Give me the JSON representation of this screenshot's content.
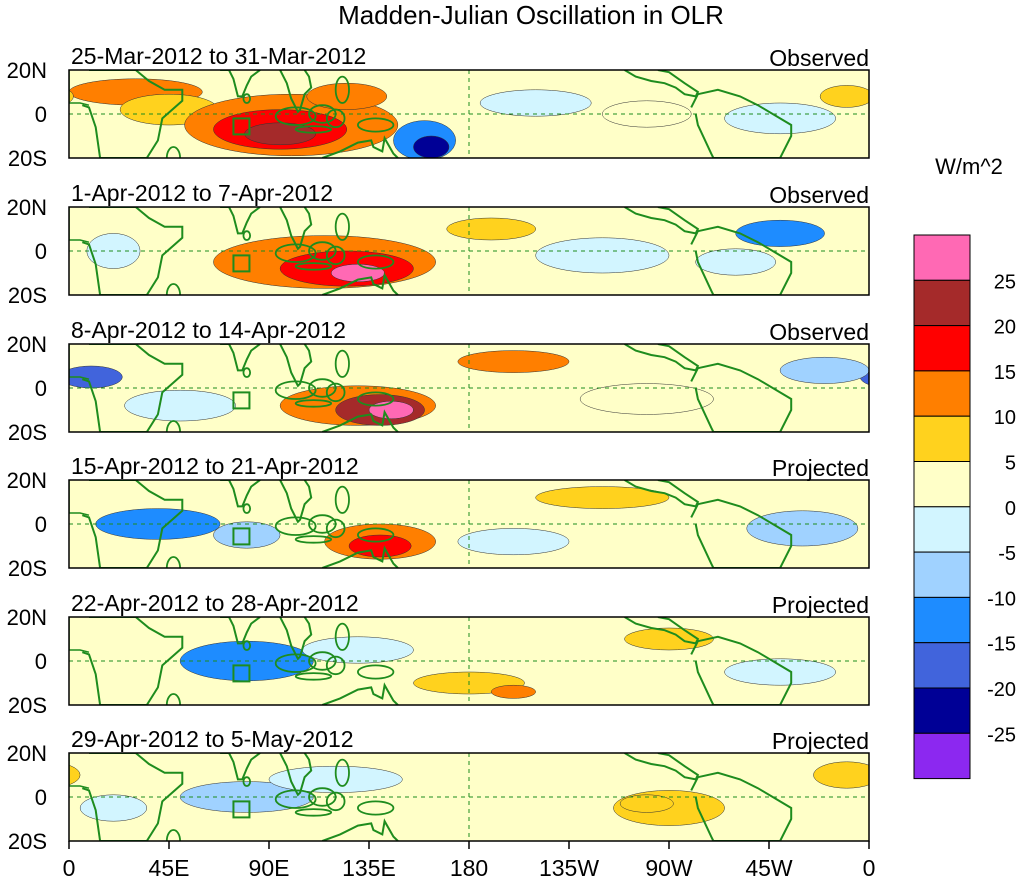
{
  "chart_data": {
    "type": "heatmap",
    "title": "Madden-Julian Oscillation in OLR",
    "units": "W/m^2",
    "lon_ticks": [
      "0",
      "45E",
      "90E",
      "135E",
      "180",
      "135W",
      "90W",
      "45W",
      "0"
    ],
    "lat_ticks": [
      "20N",
      "0",
      "20S"
    ],
    "colorbar": {
      "labels": [
        "25",
        "20",
        "15",
        "10",
        "5",
        "0",
        "-5",
        "-10",
        "-15",
        "-20",
        "-25"
      ],
      "colors": [
        "#ff69b4",
        "#a52a2a",
        "#ff0000",
        "#ff7f00",
        "#ffd21e",
        "#ffffc8",
        "#d2f5ff",
        "#a0d2ff",
        "#1e8cff",
        "#4164dc",
        "#000096",
        "#8c28f0"
      ]
    },
    "land_color": "#1e8c1e",
    "panels": [
      {
        "date_range": "25-Mar-2012 to 31-Mar-2012",
        "status": "Observed",
        "anomalies": [
          {
            "lon": 30,
            "lat": 10,
            "rx": 30,
            "ry": 6,
            "level": 3
          },
          {
            "lon": 45,
            "lat": 2,
            "rx": 22,
            "ry": 7,
            "level": 4
          },
          {
            "lon": 100,
            "lat": -5,
            "rx": 48,
            "ry": 14,
            "level": 3
          },
          {
            "lon": 95,
            "lat": -7,
            "rx": 30,
            "ry": 9,
            "level": 2
          },
          {
            "lon": 95,
            "lat": -9,
            "rx": 16,
            "ry": 5,
            "level": 1
          },
          {
            "lon": 125,
            "lat": 8,
            "rx": 18,
            "ry": 6,
            "level": 3
          },
          {
            "lon": 160,
            "lat": -12,
            "rx": 14,
            "ry": 9,
            "level": 8
          },
          {
            "lon": 163,
            "lat": -15,
            "rx": 8,
            "ry": 5,
            "level": 10
          },
          {
            "lon": 210,
            "lat": 5,
            "rx": 25,
            "ry": 6,
            "level": 6
          },
          {
            "lon": 260,
            "lat": 0,
            "rx": 20,
            "ry": 6,
            "level": 5
          },
          {
            "lon": 320,
            "lat": -2,
            "rx": 25,
            "ry": 7,
            "level": 6
          },
          {
            "lon": 350,
            "lat": 8,
            "rx": 12,
            "ry": 5,
            "level": 4
          }
        ]
      },
      {
        "date_range": "1-Apr-2012 to 7-Apr-2012",
        "status": "Observed",
        "anomalies": [
          {
            "lon": 115,
            "lat": -5,
            "rx": 50,
            "ry": 12,
            "level": 3
          },
          {
            "lon": 125,
            "lat": -8,
            "rx": 30,
            "ry": 8,
            "level": 2
          },
          {
            "lon": 130,
            "lat": -10,
            "rx": 12,
            "ry": 4,
            "level": 0
          },
          {
            "lon": 20,
            "lat": 0,
            "rx": 12,
            "ry": 8,
            "level": 6
          },
          {
            "lon": 190,
            "lat": 10,
            "rx": 20,
            "ry": 5,
            "level": 4
          },
          {
            "lon": 240,
            "lat": -2,
            "rx": 30,
            "ry": 8,
            "level": 6
          },
          {
            "lon": 320,
            "lat": 8,
            "rx": 20,
            "ry": 6,
            "level": 8
          },
          {
            "lon": 300,
            "lat": -5,
            "rx": 18,
            "ry": 6,
            "level": 6
          }
        ]
      },
      {
        "date_range": "8-Apr-2012 to 14-Apr-2012",
        "status": "Observed",
        "anomalies": [
          {
            "lon": 130,
            "lat": -8,
            "rx": 35,
            "ry": 9,
            "level": 3
          },
          {
            "lon": 140,
            "lat": -10,
            "rx": 20,
            "ry": 7,
            "level": 1
          },
          {
            "lon": 145,
            "lat": -10,
            "rx": 10,
            "ry": 4,
            "level": 0
          },
          {
            "lon": 10,
            "lat": 5,
            "rx": 14,
            "ry": 5,
            "level": 9
          },
          {
            "lon": 50,
            "lat": -8,
            "rx": 25,
            "ry": 7,
            "level": 6
          },
          {
            "lon": 200,
            "lat": 12,
            "rx": 25,
            "ry": 5,
            "level": 3
          },
          {
            "lon": 340,
            "lat": 8,
            "rx": 20,
            "ry": 6,
            "level": 7
          },
          {
            "lon": 260,
            "lat": -5,
            "rx": 30,
            "ry": 7,
            "level": 5
          }
        ]
      },
      {
        "date_range": "15-Apr-2012 to 21-Apr-2012",
        "status": "Projected",
        "anomalies": [
          {
            "lon": 140,
            "lat": -8,
            "rx": 25,
            "ry": 8,
            "level": 3
          },
          {
            "lon": 140,
            "lat": -10,
            "rx": 14,
            "ry": 5,
            "level": 2
          },
          {
            "lon": 40,
            "lat": 0,
            "rx": 28,
            "ry": 7,
            "level": 8
          },
          {
            "lon": 80,
            "lat": -5,
            "rx": 15,
            "ry": 6,
            "level": 7
          },
          {
            "lon": 240,
            "lat": 12,
            "rx": 30,
            "ry": 5,
            "level": 4
          },
          {
            "lon": 200,
            "lat": -8,
            "rx": 25,
            "ry": 6,
            "level": 6
          },
          {
            "lon": 330,
            "lat": -2,
            "rx": 25,
            "ry": 8,
            "level": 7
          }
        ]
      },
      {
        "date_range": "22-Apr-2012 to 28-Apr-2012",
        "status": "Projected",
        "anomalies": [
          {
            "lon": 80,
            "lat": 0,
            "rx": 30,
            "ry": 9,
            "level": 8
          },
          {
            "lon": 130,
            "lat": 5,
            "rx": 25,
            "ry": 6,
            "level": 6
          },
          {
            "lon": 180,
            "lat": -10,
            "rx": 25,
            "ry": 5,
            "level": 4
          },
          {
            "lon": 200,
            "lat": -14,
            "rx": 10,
            "ry": 3,
            "level": 3
          },
          {
            "lon": 270,
            "lat": 10,
            "rx": 20,
            "ry": 5,
            "level": 4
          },
          {
            "lon": 320,
            "lat": -5,
            "rx": 25,
            "ry": 6,
            "level": 6
          }
        ]
      },
      {
        "date_range": "29-Apr-2012 to 5-May-2012",
        "status": "Projected",
        "anomalies": [
          {
            "lon": 80,
            "lat": 0,
            "rx": 30,
            "ry": 7,
            "level": 7
          },
          {
            "lon": 120,
            "lat": 8,
            "rx": 30,
            "ry": 6,
            "level": 6
          },
          {
            "lon": 270,
            "lat": -5,
            "rx": 25,
            "ry": 8,
            "level": 4
          },
          {
            "lon": 260,
            "lat": -3,
            "rx": 12,
            "ry": 4,
            "level": 4
          },
          {
            "lon": 350,
            "lat": 10,
            "rx": 15,
            "ry": 6,
            "level": 4
          },
          {
            "lon": 20,
            "lat": -5,
            "rx": 15,
            "ry": 6,
            "level": 6
          }
        ]
      }
    ]
  }
}
